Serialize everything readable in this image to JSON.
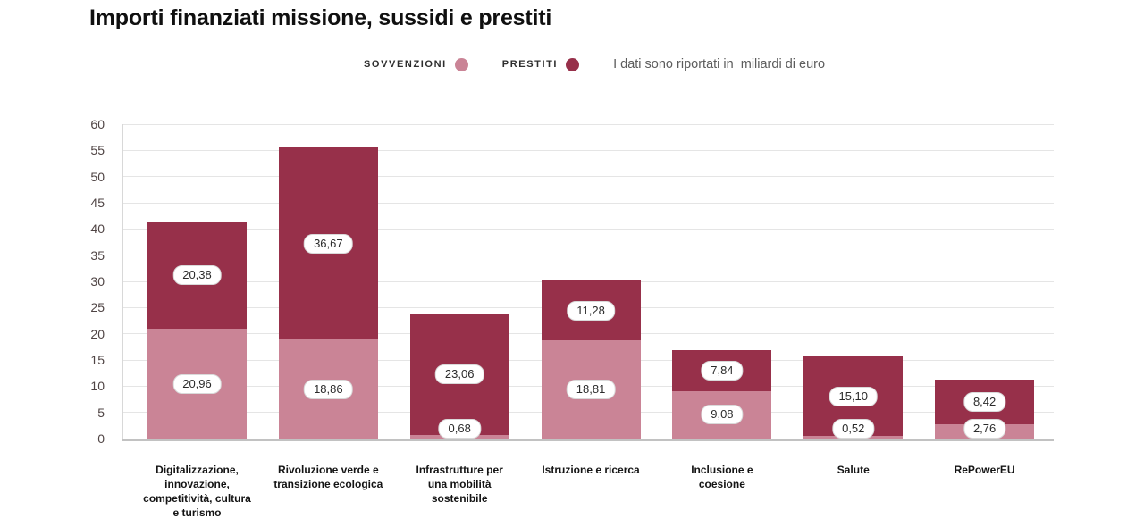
{
  "title": "Importi finanziati missione, sussidi e prestiti",
  "legend": {
    "items": [
      {
        "id": "sovvenzioni",
        "label": "SOVVENZIONI",
        "color": "#ca8496"
      },
      {
        "id": "prestiti",
        "label": "PRESTITI",
        "color": "#97304a"
      }
    ],
    "note": "I dati sono riportati in  miliardi di euro"
  },
  "chart_data": {
    "type": "bar",
    "stacked": true,
    "title": "Importi finanziati missione, sussidi e prestiti",
    "unit": "miliardi di euro",
    "categories": [
      "Digitalizzazione, innovazione, competitività, cultura e turismo",
      "Rivoluzione verde e transizione ecologica",
      "Infrastrutture per una mobilità sostenibile",
      "Istruzione e ricerca",
      "Inclusione e coesione",
      "Salute",
      "RePowerEU"
    ],
    "xtick_display": [
      "Digitalizzazione,\ninnovazione,\ncompetitività, cultura\ne turismo",
      "Rivoluzione verde e\ntransizione ecologica",
      "Infrastrutture per\nuna mobilità\nsostenibile",
      "Istruzione e ricerca",
      "Inclusione e\ncoesione",
      "Salute",
      "RePowerEU"
    ],
    "series": [
      {
        "name": "SOVVENZIONI",
        "color": "#ca8496",
        "values": [
          20.96,
          18.86,
          0.68,
          18.81,
          9.08,
          0.52,
          2.76
        ],
        "labels": [
          "20,96",
          "18,86",
          "0,68",
          "18,81",
          "9,08",
          "0,52",
          "2,76"
        ]
      },
      {
        "name": "PRESTITI",
        "color": "#97304a",
        "values": [
          20.38,
          36.67,
          23.06,
          11.28,
          7.84,
          15.1,
          8.42
        ],
        "labels": [
          "20,38",
          "36,67",
          "23,06",
          "11,28",
          "7,84",
          "15,10",
          "8,42"
        ]
      }
    ],
    "ylim": [
      0,
      60
    ],
    "ytick_step": 5,
    "yticks": [
      0,
      5,
      10,
      15,
      20,
      25,
      30,
      35,
      40,
      45,
      50,
      55,
      60
    ],
    "grid": true,
    "legend_position": "top"
  }
}
